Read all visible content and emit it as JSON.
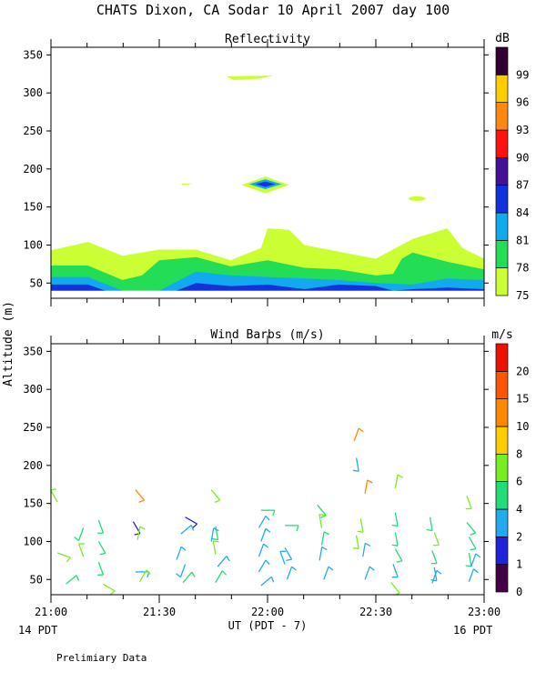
{
  "title": "CHATS Dixon, CA  Sodar  10 April 2007  day 100",
  "ylabel": "Altitude (m)",
  "xlabel": "UT  (PDT - 7)",
  "footer_left": "14 PDT",
  "footer_right": "16 PDT",
  "footnote": "Prelimiary Data",
  "x_ticks": [
    "21:00",
    "21:30",
    "22:00",
    "22:30",
    "23:00"
  ],
  "y_ticks": [
    50,
    100,
    150,
    200,
    250,
    300,
    350
  ],
  "chart_data": [
    {
      "type": "heatmap",
      "title": "Reflectivity",
      "x_range_hours": [
        21.0,
        23.0
      ],
      "ylim": [
        30,
        360
      ],
      "colorbar": {
        "unit": "dB",
        "labels": [
          75,
          78,
          81,
          84,
          87,
          90,
          93,
          96,
          99
        ],
        "colors": [
          "#ccff33",
          "#22dd55",
          "#11aaee",
          "#1133dd",
          "#441199",
          "#ff1111",
          "#ff8811",
          "#ffcc00",
          "#330033"
        ]
      },
      "layers": [
        {
          "level": 75,
          "color": "#ccff33",
          "top": [
            [
              21.0,
              93
            ],
            [
              21.17,
              104
            ],
            [
              21.33,
              86
            ],
            [
              21.5,
              94
            ],
            [
              21.67,
              94
            ],
            [
              21.83,
              80
            ],
            [
              21.97,
              96
            ],
            [
              22.0,
              122
            ],
            [
              22.1,
              120
            ],
            [
              22.17,
              100
            ],
            [
              22.5,
              82
            ],
            [
              22.67,
              108
            ],
            [
              22.83,
              122
            ],
            [
              22.9,
              96
            ],
            [
              23.0,
              82
            ]
          ],
          "bottom": 40
        },
        {
          "level": 78,
          "color": "#22dd55",
          "top": [
            [
              21.0,
              73
            ],
            [
              21.17,
              73
            ],
            [
              21.33,
              54
            ],
            [
              21.42,
              60
            ],
            [
              21.5,
              80
            ],
            [
              21.67,
              84
            ],
            [
              21.83,
              72
            ],
            [
              22.0,
              80
            ],
            [
              22.17,
              70
            ],
            [
              22.33,
              68
            ],
            [
              22.5,
              60
            ],
            [
              22.58,
              62
            ],
            [
              22.62,
              82
            ],
            [
              22.67,
              90
            ],
            [
              22.83,
              78
            ],
            [
              23.0,
              68
            ]
          ],
          "bottom": 40
        },
        {
          "level": 81,
          "color": "#11aaee",
          "top": [
            [
              21.0,
              58
            ],
            [
              21.17,
              58
            ],
            [
              21.33,
              40
            ],
            [
              21.5,
              40
            ],
            [
              21.67,
              65
            ],
            [
              21.83,
              60
            ],
            [
              22.0,
              58
            ],
            [
              22.17,
              56
            ],
            [
              22.33,
              54
            ],
            [
              22.5,
              50
            ],
            [
              22.67,
              48
            ],
            [
              22.83,
              56
            ],
            [
              23.0,
              54
            ]
          ],
          "bottom": 40
        },
        {
          "level": 84,
          "color": "#1133dd",
          "top": [
            [
              21.0,
              48
            ],
            [
              21.17,
              48
            ],
            [
              21.25,
              40
            ],
            [
              21.58,
              40
            ],
            [
              21.67,
              50
            ],
            [
              21.83,
              46
            ],
            [
              22.0,
              48
            ],
            [
              22.17,
              42
            ],
            [
              22.33,
              48
            ],
            [
              22.5,
              46
            ],
            [
              22.58,
              40
            ],
            [
              22.67,
              42
            ],
            [
              22.83,
              44
            ],
            [
              23.0,
              42
            ]
          ],
          "bottom": 40
        }
      ],
      "blobs": [
        {
          "x": 21.92,
          "y": 320,
          "w": 0.22,
          "h": 6,
          "color": "#ccff33",
          "shape": "streak"
        },
        {
          "x": 21.625,
          "y": 180,
          "w": 0.05,
          "h": 2,
          "color": "#ccff33",
          "shape": "streak"
        },
        {
          "x": 21.99,
          "y": 179,
          "w": 0.22,
          "h": 22,
          "color": "#ccff33",
          "shape": "diamond"
        },
        {
          "x": 21.99,
          "y": 180,
          "w": 0.15,
          "h": 13,
          "color": "#11aaee",
          "shape": "diamond"
        },
        {
          "x": 21.99,
          "y": 180,
          "w": 0.09,
          "h": 7,
          "color": "#1133dd",
          "shape": "diamond"
        },
        {
          "x": 22.69,
          "y": 161,
          "w": 0.08,
          "h": 6,
          "color": "#ccff33",
          "shape": "ellipse"
        }
      ]
    },
    {
      "type": "scatter",
      "title": "Wind Barbs (m/s)",
      "x_range_hours": [
        21.0,
        23.0
      ],
      "ylim": [
        30,
        360
      ],
      "colorbar": {
        "unit": "m/s",
        "labels": [
          0,
          1,
          2,
          4,
          6,
          8,
          10,
          15,
          20
        ],
        "colors": [
          "#440044",
          "#2222dd",
          "#22aaee",
          "#22dd77",
          "#77ee22",
          "#ffcc00",
          "#ff8800",
          "#ff5500",
          "#ee1100"
        ]
      },
      "barbs": [
        {
          "x": 21.03,
          "y": 152,
          "dir": 330,
          "color": "#77ee22"
        },
        {
          "x": 21.15,
          "y": 118,
          "dir": 200,
          "color": "#22dd77"
        },
        {
          "x": 21.03,
          "y": 85,
          "dir": 110,
          "color": "#77ee22"
        },
        {
          "x": 21.15,
          "y": 80,
          "dir": 340,
          "color": "#77ee22"
        },
        {
          "x": 21.07,
          "y": 44,
          "dir": 50,
          "color": "#22dd77"
        },
        {
          "x": 21.22,
          "y": 128,
          "dir": 160,
          "color": "#22dd77"
        },
        {
          "x": 21.22,
          "y": 100,
          "dir": 150,
          "color": "#22dd77"
        },
        {
          "x": 21.22,
          "y": 73,
          "dir": 160,
          "color": "#22dd77"
        },
        {
          "x": 21.24,
          "y": 44,
          "dir": 120,
          "color": "#77ee22"
        },
        {
          "x": 21.39,
          "y": 168,
          "dir": 140,
          "color": "#ff8800"
        },
        {
          "x": 21.38,
          "y": 126,
          "dir": 150,
          "color": "#2222dd"
        },
        {
          "x": 21.4,
          "y": 102,
          "dir": 10,
          "color": "#77ee22"
        },
        {
          "x": 21.39,
          "y": 60,
          "dir": 90,
          "color": "#22aaee"
        },
        {
          "x": 21.41,
          "y": 47,
          "dir": 30,
          "color": "#77ee22"
        },
        {
          "x": 21.62,
          "y": 132,
          "dir": 120,
          "color": "#2222dd"
        },
        {
          "x": 21.6,
          "y": 110,
          "dir": 50,
          "color": "#22aaee"
        },
        {
          "x": 21.58,
          "y": 76,
          "dir": 20,
          "color": "#22aaee"
        },
        {
          "x": 21.62,
          "y": 70,
          "dir": 200,
          "color": "#22aaee"
        },
        {
          "x": 21.61,
          "y": 46,
          "dir": 40,
          "color": "#22dd77"
        },
        {
          "x": 21.74,
          "y": 168,
          "dir": 140,
          "color": "#77ee22"
        },
        {
          "x": 21.76,
          "y": 120,
          "dir": 170,
          "color": "#22dd77"
        },
        {
          "x": 21.74,
          "y": 100,
          "dir": 10,
          "color": "#22aaee"
        },
        {
          "x": 21.76,
          "y": 83,
          "dir": 350,
          "color": "#77ee22"
        },
        {
          "x": 21.77,
          "y": 67,
          "dir": 40,
          "color": "#22aaee"
        },
        {
          "x": 21.76,
          "y": 46,
          "dir": 30,
          "color": "#22dd77"
        },
        {
          "x": 21.97,
          "y": 141,
          "dir": 90,
          "color": "#22dd77"
        },
        {
          "x": 21.96,
          "y": 118,
          "dir": 30,
          "color": "#22aaee"
        },
        {
          "x": 21.97,
          "y": 100,
          "dir": 20,
          "color": "#22aaee"
        },
        {
          "x": 21.96,
          "y": 80,
          "dir": 20,
          "color": "#22aaee"
        },
        {
          "x": 21.96,
          "y": 60,
          "dir": 30,
          "color": "#22aaee"
        },
        {
          "x": 21.97,
          "y": 42,
          "dir": 50,
          "color": "#22aaee"
        },
        {
          "x": 22.08,
          "y": 121,
          "dir": 90,
          "color": "#22dd77"
        },
        {
          "x": 22.08,
          "y": 92,
          "dir": 150,
          "color": "#22aaee"
        },
        {
          "x": 22.08,
          "y": 70,
          "dir": 340,
          "color": "#22aaee"
        },
        {
          "x": 22.09,
          "y": 50,
          "dir": 20,
          "color": "#22aaee"
        },
        {
          "x": 22.23,
          "y": 148,
          "dir": 140,
          "color": "#22dd77"
        },
        {
          "x": 22.25,
          "y": 118,
          "dir": 350,
          "color": "#77ee22"
        },
        {
          "x": 22.25,
          "y": 95,
          "dir": 10,
          "color": "#22dd77"
        },
        {
          "x": 22.24,
          "y": 75,
          "dir": 10,
          "color": "#22aaee"
        },
        {
          "x": 22.26,
          "y": 50,
          "dir": 20,
          "color": "#22aaee"
        },
        {
          "x": 22.4,
          "y": 232,
          "dir": 20,
          "color": "#ff8800"
        },
        {
          "x": 22.41,
          "y": 210,
          "dir": 170,
          "color": "#22aaee"
        },
        {
          "x": 22.45,
          "y": 163,
          "dir": 10,
          "color": "#ff8800"
        },
        {
          "x": 22.43,
          "y": 130,
          "dir": 170,
          "color": "#77ee22"
        },
        {
          "x": 22.41,
          "y": 108,
          "dir": 170,
          "color": "#77ee22"
        },
        {
          "x": 22.44,
          "y": 80,
          "dir": 10,
          "color": "#22aaee"
        },
        {
          "x": 22.45,
          "y": 50,
          "dir": 20,
          "color": "#22aaee"
        },
        {
          "x": 22.59,
          "y": 170,
          "dir": 10,
          "color": "#77ee22"
        },
        {
          "x": 22.59,
          "y": 138,
          "dir": 170,
          "color": "#22dd77"
        },
        {
          "x": 22.59,
          "y": 112,
          "dir": 170,
          "color": "#22dd77"
        },
        {
          "x": 22.59,
          "y": 90,
          "dir": 150,
          "color": "#22dd77"
        },
        {
          "x": 22.58,
          "y": 70,
          "dir": 160,
          "color": "#22aaee"
        },
        {
          "x": 22.57,
          "y": 46,
          "dir": 140,
          "color": "#77ee22"
        },
        {
          "x": 22.75,
          "y": 132,
          "dir": 170,
          "color": "#22dd77"
        },
        {
          "x": 22.77,
          "y": 112,
          "dir": 160,
          "color": "#77ee22"
        },
        {
          "x": 22.76,
          "y": 88,
          "dir": 160,
          "color": "#22dd77"
        },
        {
          "x": 22.77,
          "y": 66,
          "dir": 170,
          "color": "#22aaee"
        },
        {
          "x": 22.76,
          "y": 45,
          "dir": 20,
          "color": "#22aaee"
        },
        {
          "x": 22.92,
          "y": 160,
          "dir": 160,
          "color": "#77ee22"
        },
        {
          "x": 22.92,
          "y": 125,
          "dir": 140,
          "color": "#22dd77"
        },
        {
          "x": 22.93,
          "y": 106,
          "dir": 150,
          "color": "#22dd77"
        },
        {
          "x": 22.93,
          "y": 85,
          "dir": 170,
          "color": "#22dd77"
        },
        {
          "x": 22.94,
          "y": 67,
          "dir": 20,
          "color": "#22aaee"
        },
        {
          "x": 22.93,
          "y": 47,
          "dir": 20,
          "color": "#22aaee"
        }
      ]
    }
  ]
}
